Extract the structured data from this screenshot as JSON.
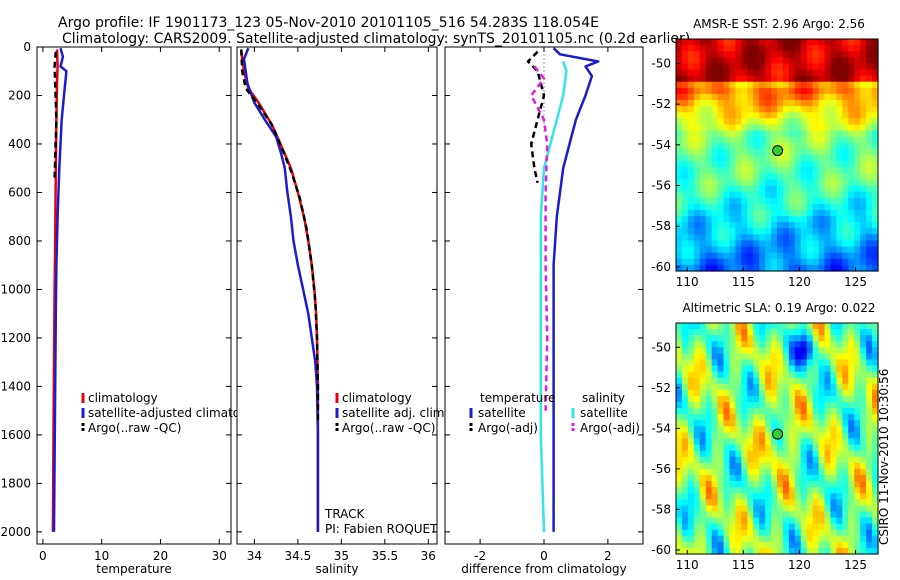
{
  "title": {
    "line1": "Argo profile: IF 1901173_123 05-Nov-2010 20101105_516 54.283S 118.054E",
    "line2": "Climatology: CARS2009. Satellite-adjusted climatology: synTS_20101105.nc (0.2d earlier)"
  },
  "colors": {
    "red": "#e8000b",
    "blue": "#1c1ccc",
    "black": "#000000",
    "cyan": "#33e5e5",
    "magenta": "#e01ce0",
    "dotted": "#6a6ad8"
  },
  "chart_data": [
    {
      "type": "line",
      "id": "temperature",
      "xlabel": "temperature",
      "xlim": [
        -1,
        32
      ],
      "ylim": [
        2050,
        0
      ],
      "xticks": [
        0,
        10,
        20,
        30
      ],
      "xticklabels": [
        "0",
        "10",
        "20",
        "30"
      ],
      "yticks": [
        0,
        200,
        400,
        600,
        800,
        1000,
        1200,
        1400,
        1600,
        1800,
        2000
      ],
      "yticklabels": [
        "0",
        "200",
        "400",
        "600",
        "800",
        "1000",
        "1200",
        "1400",
        "1600",
        "1800",
        "2000"
      ],
      "series": [
        {
          "name": "climatology",
          "color": "red",
          "style": "solid",
          "width": 2.5,
          "points": [
            [
              2.4,
              10
            ],
            [
              2.5,
              80
            ],
            [
              2.4,
              150
            ],
            [
              2.3,
              300
            ],
            [
              2.2,
              500
            ],
            [
              2.1,
              800
            ],
            [
              2.0,
              1000
            ],
            [
              1.9,
              1300
            ],
            [
              1.8,
              1600
            ],
            [
              1.7,
              2000
            ]
          ]
        },
        {
          "name": "satellite-adjusted climatology",
          "color": "blue",
          "style": "solid",
          "width": 2.5,
          "points": [
            [
              3.0,
              5
            ],
            [
              3.4,
              40
            ],
            [
              3.0,
              80
            ],
            [
              4.0,
              100
            ],
            [
              3.6,
              200
            ],
            [
              3.2,
              300
            ],
            [
              2.8,
              500
            ],
            [
              2.5,
              700
            ],
            [
              2.3,
              900
            ],
            [
              2.2,
              1100
            ],
            [
              2.1,
              1400
            ],
            [
              2.0,
              1700
            ],
            [
              1.9,
              2000
            ]
          ]
        },
        {
          "name": "Argo(..raw -QC)",
          "color": "black",
          "style": "dashed",
          "width": 2.5,
          "points": [
            [
              2.2,
              20
            ],
            [
              2.0,
              80
            ],
            [
              2.1,
              150
            ],
            [
              2.3,
              300
            ],
            [
              2.1,
              450
            ],
            [
              2.0,
              550
            ]
          ]
        }
      ],
      "legend": {
        "position": "lower-left",
        "entries": [
          {
            "label": "climatology",
            "color": "red",
            "style": "solid"
          },
          {
            "label": "satellite-adjusted climatology",
            "color": "blue",
            "style": "solid"
          },
          {
            "label": "Argo(..raw -QC)",
            "color": "black",
            "style": "dashed"
          }
        ]
      }
    },
    {
      "type": "line",
      "id": "salinity",
      "xlabel": "salinity",
      "xlim": [
        33.8,
        36.1
      ],
      "ylim": [
        2050,
        0
      ],
      "xticks": [
        34,
        34.5,
        35,
        35.5,
        36
      ],
      "xticklabels": [
        "34",
        "34.5",
        "35",
        "35.5",
        "36"
      ],
      "series": [
        {
          "name": "climatology",
          "color": "red",
          "style": "solid",
          "width": 2.5,
          "points": [
            [
              33.85,
              20
            ],
            [
              33.88,
              100
            ],
            [
              33.93,
              170
            ],
            [
              34.05,
              230
            ],
            [
              34.2,
              320
            ],
            [
              34.3,
              400
            ],
            [
              34.42,
              500
            ],
            [
              34.5,
              600
            ],
            [
              34.57,
              700
            ],
            [
              34.62,
              800
            ],
            [
              34.66,
              900
            ],
            [
              34.69,
              1000
            ],
            [
              34.71,
              1100
            ],
            [
              34.72,
              1200
            ],
            [
              34.73,
              1400
            ],
            [
              34.73,
              1600
            ],
            [
              34.73,
              2000
            ]
          ]
        },
        {
          "name": "satellite adj. clim.",
          "color": "blue",
          "style": "solid",
          "width": 2.5,
          "points": [
            [
              33.93,
              5
            ],
            [
              33.88,
              50
            ],
            [
              33.92,
              150
            ],
            [
              34.0,
              230
            ],
            [
              34.12,
              300
            ],
            [
              34.25,
              370
            ],
            [
              34.3,
              430
            ],
            [
              34.35,
              500
            ],
            [
              34.38,
              600
            ],
            [
              34.42,
              700
            ],
            [
              34.45,
              800
            ],
            [
              34.5,
              900
            ],
            [
              34.56,
              1000
            ],
            [
              34.62,
              1100
            ],
            [
              34.66,
              1200
            ],
            [
              34.7,
              1300
            ],
            [
              34.72,
              1400
            ],
            [
              34.73,
              1600
            ],
            [
              34.73,
              2000
            ]
          ]
        },
        {
          "name": "Argo(..raw -QC)",
          "color": "black",
          "style": "dashed",
          "width": 2.5,
          "points": [
            [
              33.85,
              10
            ],
            [
              33.86,
              100
            ],
            [
              33.9,
              170
            ],
            [
              34.05,
              240
            ],
            [
              34.2,
              320
            ],
            [
              34.32,
              420
            ],
            [
              34.43,
              520
            ],
            [
              34.52,
              620
            ],
            [
              34.6,
              750
            ],
            [
              34.66,
              900
            ],
            [
              34.7,
              1050
            ],
            [
              34.72,
              1200
            ],
            [
              34.73,
              1400
            ],
            [
              34.73,
              1550
            ]
          ]
        }
      ],
      "legend": {
        "position": "lower-left",
        "entries": [
          {
            "label": "climatology",
            "color": "red",
            "style": "solid"
          },
          {
            "label": "satellite adj. clim.",
            "color": "blue",
            "style": "solid"
          },
          {
            "label": "Argo(..raw -QC)",
            "color": "black",
            "style": "dashed"
          }
        ]
      },
      "annotations": [
        "TRACK",
        "PI: Fabien ROQUET"
      ]
    },
    {
      "type": "line",
      "id": "difference",
      "xlabel": "difference from climatology",
      "xlim": [
        -3.1,
        3.1
      ],
      "ylim": [
        2050,
        0
      ],
      "xticks": [
        -2,
        0,
        2
      ],
      "xticklabels": [
        "-2",
        "0",
        "2"
      ],
      "series": [
        {
          "name": "temperature satellite",
          "color": "blue",
          "style": "solid",
          "width": 2.5,
          "points": [
            [
              0.3,
              5
            ],
            [
              0.5,
              30
            ],
            [
              1.7,
              60
            ],
            [
              1.3,
              80
            ],
            [
              1.5,
              120
            ],
            [
              1.3,
              200
            ],
            [
              1.0,
              300
            ],
            [
              0.8,
              400
            ],
            [
              0.6,
              500
            ],
            [
              0.4,
              700
            ],
            [
              0.3,
              900
            ],
            [
              0.3,
              1200
            ],
            [
              0.3,
              1600
            ],
            [
              0.3,
              2000
            ]
          ]
        },
        {
          "name": "salinity satellite",
          "color": "cyan",
          "style": "solid",
          "width": 2.5,
          "points": [
            [
              0.6,
              60
            ],
            [
              0.7,
              100
            ],
            [
              0.6,
              200
            ],
            [
              0.3,
              350
            ],
            [
              0.0,
              500
            ],
            [
              -0.1,
              700
            ],
            [
              -0.1,
              900
            ],
            [
              -0.1,
              1200
            ],
            [
              -0.1,
              1600
            ],
            [
              0.0,
              2000
            ]
          ]
        },
        {
          "name": "temperature Argo(-adj)",
          "color": "black",
          "style": "dashed",
          "width": 2.5,
          "points": [
            [
              -0.2,
              20
            ],
            [
              -0.5,
              60
            ],
            [
              -0.2,
              100
            ],
            [
              0.0,
              200
            ],
            [
              -0.2,
              300
            ],
            [
              -0.4,
              400
            ],
            [
              -0.3,
              500
            ],
            [
              -0.2,
              560
            ]
          ]
        },
        {
          "name": "salinity Argo(-adj)",
          "color": "magenta",
          "style": "dashed",
          "width": 2.5,
          "points": [
            [
              -0.3,
              80
            ],
            [
              0.0,
              130
            ],
            [
              -0.4,
              200
            ],
            [
              0.0,
              300
            ],
            [
              0.1,
              400
            ],
            [
              0.05,
              600
            ],
            [
              0.05,
              900
            ],
            [
              0.1,
              1200
            ],
            [
              0.05,
              1500
            ]
          ]
        }
      ],
      "zero_line": {
        "x": 0,
        "color": "dotted",
        "ytop": 30,
        "ybottom": 350
      },
      "legend": {
        "position": "lower",
        "entries": [
          {
            "label": "temperature",
            "color": "",
            "style": "none"
          },
          {
            "label": "satellite",
            "color": "blue",
            "style": "solid"
          },
          {
            "label": "Argo(-adj)",
            "color": "black",
            "style": "dashed"
          },
          {
            "label": "salinity",
            "color": "",
            "style": "none"
          },
          {
            "label": "satellite",
            "color": "cyan",
            "style": "solid"
          },
          {
            "label": "Argo(-adj)",
            "color": "magenta",
            "style": "dashed"
          }
        ]
      }
    },
    {
      "type": "heatmap",
      "id": "sst-map",
      "title": "AMSR-E SST: 2.96 Argo: 2.56",
      "xlim": [
        109,
        127
      ],
      "ylim": [
        -60.2,
        -48.8
      ],
      "xticks": [
        110,
        115,
        120,
        125
      ],
      "xticklabels": [
        "110",
        "115",
        "120",
        "125"
      ],
      "yticks": [
        -50,
        -52,
        -54,
        -56,
        -58,
        -60
      ],
      "yticklabels": [
        "-50",
        "-52",
        "-54",
        "-56",
        "-58",
        "-60"
      ],
      "marker": {
        "lon": 118.054,
        "lat": -54.283
      },
      "colormap": "jet",
      "value_pattern": "warm-north"
    },
    {
      "type": "heatmap",
      "id": "sla-map",
      "title": "Altimetric SLA: 0.19 Argo: 0.022",
      "xlim": [
        109,
        127
      ],
      "ylim": [
        -60.2,
        -48.8
      ],
      "xticks": [
        110,
        115,
        120,
        125
      ],
      "xticklabels": [
        "110",
        "115",
        "120",
        "125"
      ],
      "yticks": [
        -50,
        -52,
        -54,
        -56,
        -58,
        -60
      ],
      "yticklabels": [
        "-50",
        "-52",
        "-54",
        "-56",
        "-58",
        "-60"
      ],
      "marker": {
        "lon": 118.054,
        "lat": -54.283
      },
      "colormap": "jet",
      "value_pattern": "patchy"
    }
  ],
  "side_text": "CSIRO 11-Nov-2010 10:30:56"
}
